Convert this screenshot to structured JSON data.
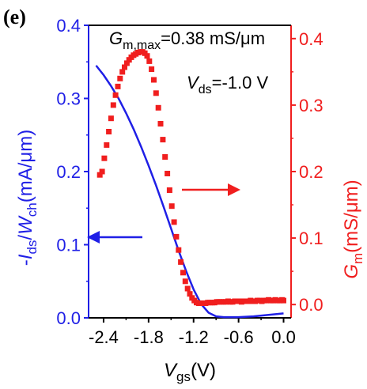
{
  "panel_label": "(e)",
  "annotations": {
    "gm_max": {
      "symbol": "G",
      "sub": "m,max",
      "value": "=0.38 mS/μm"
    },
    "vds": {
      "symbol": "V",
      "sub": "ds",
      "value": "=-1.0 V"
    }
  },
  "colors": {
    "left_axis": "#1f1fe6",
    "right_axis": "#f01e1e",
    "frame": "#000000"
  },
  "chart_data": {
    "type": "line",
    "x_label": {
      "symbol": "V",
      "sub": "gs",
      "unit": "(V)"
    },
    "y_left_label": {
      "minus": "-",
      "sym1": "I",
      "sub1": "ds",
      "slash": "/",
      "sym2": "W",
      "sub2": "ch",
      "unit": "(mA/μm)"
    },
    "y_right_label": {
      "symbol": "G",
      "sub": "m",
      "unit": "(mS/μm)"
    },
    "x_ticks": [
      "-2.4",
      "-1.8",
      "-1.2",
      "-0.6",
      "0.0"
    ],
    "y_left_ticks": [
      "0.0",
      "0.1",
      "0.2",
      "0.3",
      "0.4"
    ],
    "y_right_ticks": [
      "0.0",
      "0.1",
      "0.2",
      "0.3",
      "0.4"
    ],
    "xlim": [
      -2.6,
      0.1
    ],
    "ylim_left": [
      0,
      0.4
    ],
    "ylim_right": [
      -0.02,
      0.42
    ],
    "series": [
      {
        "axis": "left",
        "color": "#1f1fe6",
        "style": "line",
        "x": [
          -2.5,
          -2.4,
          -2.3,
          -2.2,
          -2.1,
          -2.0,
          -1.9,
          -1.8,
          -1.7,
          -1.6,
          -1.5,
          -1.4,
          -1.3,
          -1.2,
          -1.1,
          -1.0,
          -0.9,
          -0.8,
          -0.6,
          -0.4,
          -0.2,
          0.0
        ],
        "y": [
          0.345,
          0.332,
          0.317,
          0.3,
          0.28,
          0.258,
          0.234,
          0.208,
          0.181,
          0.152,
          0.122,
          0.092,
          0.064,
          0.039,
          0.019,
          0.007,
          0.002,
          0.001,
          0.001,
          0.002,
          0.004,
          0.006
        ]
      },
      {
        "axis": "right",
        "color": "#f01e1e",
        "style": "markers",
        "x": [
          -2.45,
          -2.42,
          -2.39,
          -2.36,
          -2.33,
          -2.3,
          -2.27,
          -2.24,
          -2.21,
          -2.18,
          -2.15,
          -2.12,
          -2.09,
          -2.06,
          -2.03,
          -2.0,
          -1.97,
          -1.94,
          -1.91,
          -1.88,
          -1.85,
          -1.82,
          -1.79,
          -1.76,
          -1.73,
          -1.7,
          -1.67,
          -1.64,
          -1.61,
          -1.58,
          -1.55,
          -1.52,
          -1.49,
          -1.46,
          -1.43,
          -1.4,
          -1.37,
          -1.34,
          -1.31,
          -1.28,
          -1.25,
          -1.22,
          -1.19,
          -1.16,
          -1.13,
          -1.1,
          -1.07,
          -1.04,
          -1.01,
          -0.98,
          -0.95,
          -0.92,
          -0.89,
          -0.86,
          -0.83,
          -0.8,
          -0.77,
          -0.74,
          -0.71,
          -0.68,
          -0.65,
          -0.62,
          -0.59,
          -0.56,
          -0.53,
          -0.5,
          -0.47,
          -0.44,
          -0.41,
          -0.38,
          -0.35,
          -0.32,
          -0.29,
          -0.26,
          -0.23,
          -0.2,
          -0.17,
          -0.14,
          -0.11,
          -0.08,
          -0.05,
          -0.02,
          0.0
        ],
        "y": [
          0.195,
          0.2,
          0.22,
          0.24,
          0.26,
          0.28,
          0.3,
          0.315,
          0.328,
          0.34,
          0.35,
          0.357,
          0.363,
          0.368,
          0.372,
          0.375,
          0.377,
          0.379,
          0.38,
          0.38,
          0.378,
          0.374,
          0.366,
          0.354,
          0.338,
          0.318,
          0.296,
          0.272,
          0.248,
          0.222,
          0.197,
          0.172,
          0.148,
          0.124,
          0.102,
          0.082,
          0.064,
          0.048,
          0.035,
          0.024,
          0.016,
          0.01,
          0.006,
          0.003,
          0.002,
          0.002,
          0.002,
          0.002,
          0.003,
          0.003,
          0.003,
          0.003,
          0.004,
          0.004,
          0.004,
          0.004,
          0.004,
          0.005,
          0.004,
          0.004,
          0.005,
          0.005,
          0.005,
          0.004,
          0.005,
          0.005,
          0.005,
          0.006,
          0.005,
          0.005,
          0.006,
          0.006,
          0.005,
          0.006,
          0.006,
          0.007,
          0.006,
          0.006,
          0.007,
          0.006,
          0.006,
          0.007,
          0.006
        ]
      }
    ]
  }
}
